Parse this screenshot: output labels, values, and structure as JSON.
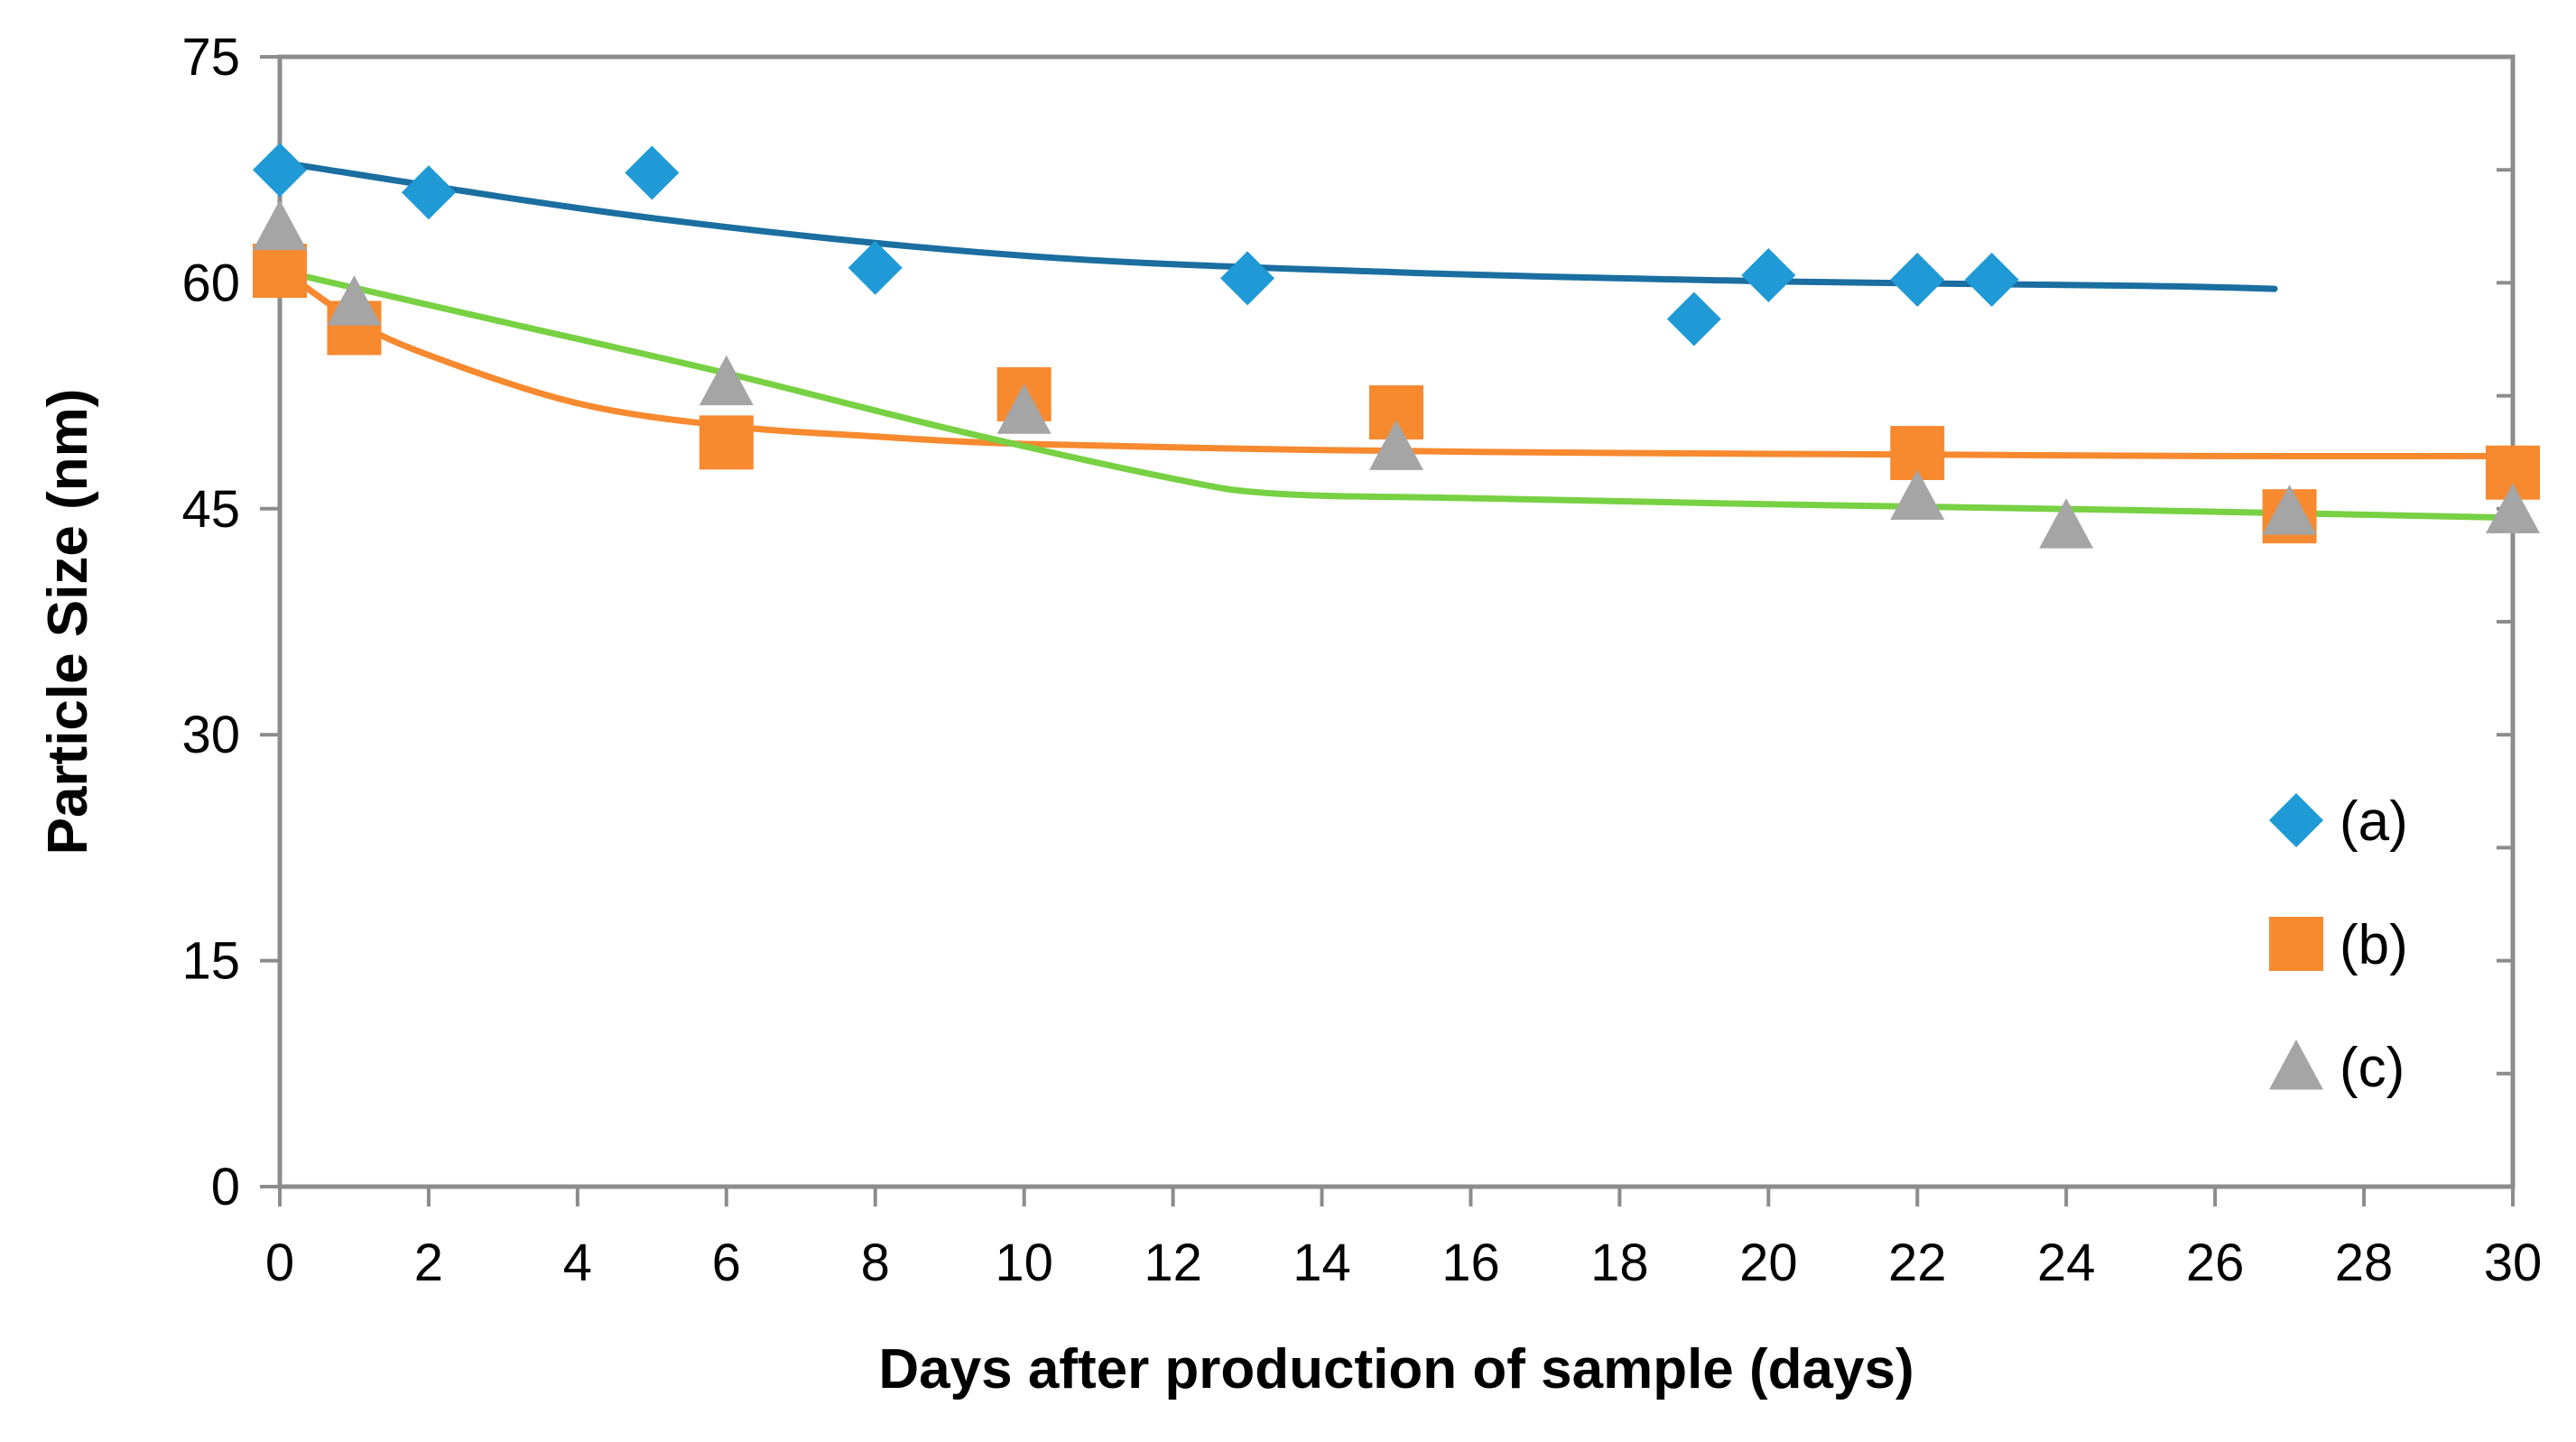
{
  "chart_data": {
    "type": "scatter",
    "xlabel": "Days after production of sample (days)",
    "ylabel": "Particle Size (nm)",
    "xlim": [
      0,
      30
    ],
    "ylim": [
      0,
      75
    ],
    "xticks": [
      "0",
      "2",
      "4",
      "6",
      "8",
      "10",
      "12",
      "14",
      "16",
      "18",
      "20",
      "22",
      "24",
      "26",
      "28",
      "30"
    ],
    "yticks": [
      "0",
      "15",
      "30",
      "45",
      "60",
      "75"
    ],
    "legend_position": "right",
    "series": [
      {
        "name": "(a)",
        "marker": "diamond",
        "color": "#1f9ad6",
        "trend_color": "#1a6ea0",
        "x": [
          0,
          2,
          5,
          8,
          13,
          19,
          20,
          22,
          23
        ],
        "y": [
          67.5,
          66,
          67.3,
          61,
          60.3,
          57.6,
          60.5,
          60.2,
          60.2
        ],
        "trend": {
          "x": [
            0,
            5,
            10,
            15,
            20,
            25,
            26.8
          ],
          "y": [
            68,
            64.3,
            61.8,
            60.7,
            60.1,
            59.8,
            59.6
          ]
        }
      },
      {
        "name": "(b)",
        "marker": "square",
        "color": "#f7892f",
        "trend_color": "#f7892f",
        "x": [
          0,
          1,
          6,
          10,
          15,
          22,
          27,
          30
        ],
        "y": [
          60.8,
          57,
          49.4,
          52.6,
          51.4,
          48.7,
          44.5,
          47.4
        ],
        "trend": {
          "x": [
            0,
            1,
            2,
            4,
            6,
            8,
            10,
            14,
            18,
            22,
            26,
            30
          ],
          "y": [
            61,
            57.5,
            55.2,
            52,
            50.5,
            49.8,
            49.3,
            48.9,
            48.7,
            48.6,
            48.5,
            48.5
          ]
        }
      },
      {
        "name": "(c)",
        "marker": "triangle",
        "color": "#a5a5a5",
        "trend_color": "#77d143",
        "x": [
          0,
          1,
          6,
          10,
          15,
          22,
          24,
          27,
          30
        ],
        "y": [
          63.7,
          58.7,
          53.4,
          51.5,
          49.1,
          45.8,
          43.9,
          44.8,
          44.9
        ],
        "trend": {
          "x": [
            0,
            3,
            6,
            9,
            12,
            13.4,
            16,
            20,
            25,
            30
          ],
          "y": [
            60.8,
            57.4,
            54,
            50.3,
            47,
            46,
            45.7,
            45.3,
            44.9,
            44.4
          ]
        }
      }
    ]
  }
}
